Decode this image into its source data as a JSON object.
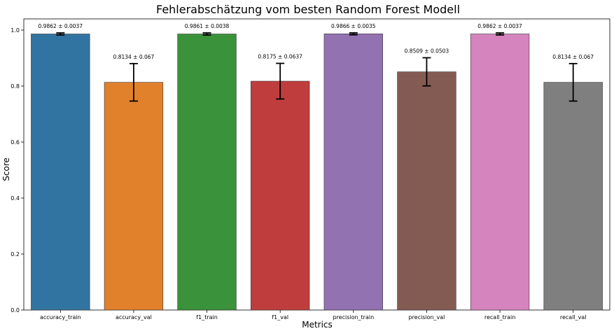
{
  "chart_data": {
    "type": "bar",
    "title": "Fehlerabschätzung vom besten Random Forest Modell",
    "xlabel": "Metrics",
    "ylabel": "Score",
    "ylim": [
      0,
      1.0
    ],
    "yticks": [
      "0.0",
      "0.2",
      "0.4",
      "0.6",
      "0.8",
      "1.0"
    ],
    "categories": [
      "accuracy_train",
      "accuracy_val",
      "f1_train",
      "f1_val",
      "precision_train",
      "precision_val",
      "recall_train",
      "recall_val"
    ],
    "values": [
      0.9862,
      0.8134,
      0.9861,
      0.8175,
      0.9866,
      0.8509,
      0.9862,
      0.8134
    ],
    "errors": [
      0.0037,
      0.067,
      0.0038,
      0.0637,
      0.0035,
      0.0503,
      0.0037,
      0.067
    ],
    "value_labels": [
      "0.9862 ± 0.0037",
      "0.8134 ± 0.067",
      "0.9861 ± 0.0038",
      "0.8175 ± 0.0637",
      "0.9866 ± 0.0035",
      "0.8509 ± 0.0503",
      "0.9862 ± 0.0037",
      "0.8134 ± 0.067"
    ],
    "colors": [
      "#3274a1",
      "#e1812c",
      "#3a923a",
      "#c03d3e",
      "#9372b2",
      "#845b53",
      "#d684bd",
      "#7f7f7f"
    ],
    "grid": false,
    "legend": false
  }
}
